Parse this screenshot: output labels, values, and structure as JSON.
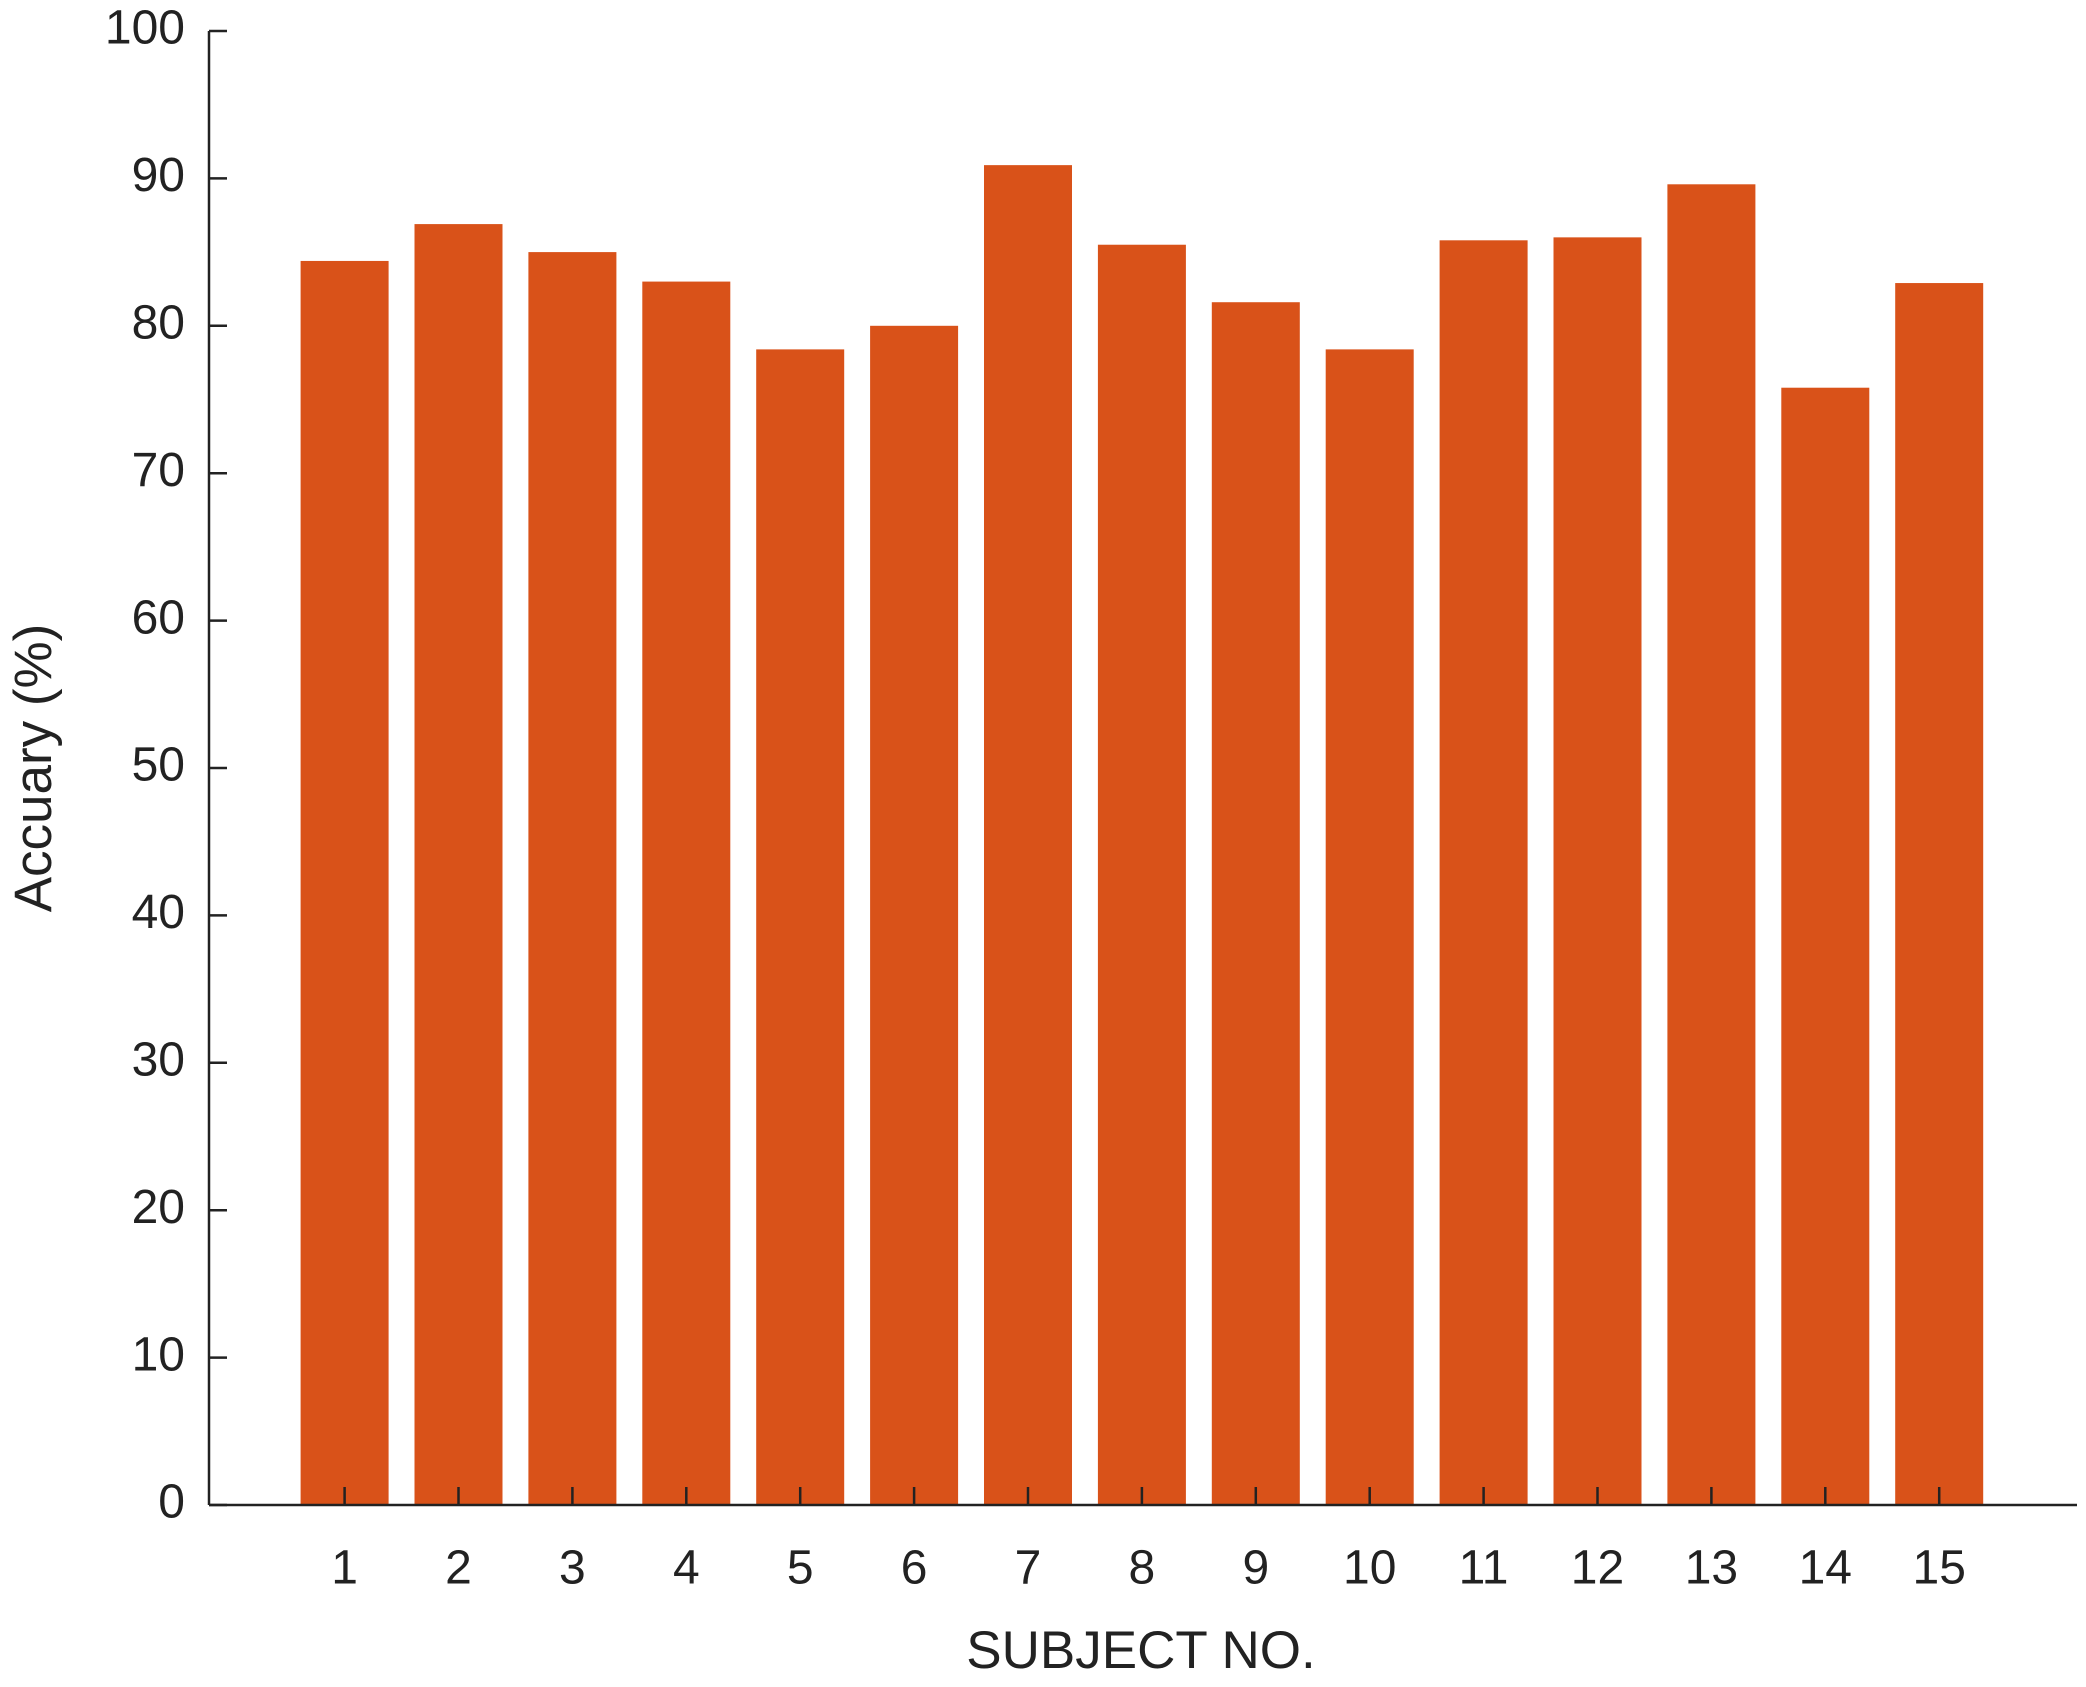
{
  "chart_data": {
    "type": "bar",
    "x_label": "SUBJECT NO.",
    "y_label": "Accuary (%)",
    "categories": [
      "1",
      "2",
      "3",
      "4",
      "5",
      "6",
      "7",
      "8",
      "9",
      "10",
      "11",
      "12",
      "13",
      "14",
      "15"
    ],
    "values": [
      84.4,
      86.9,
      85.0,
      83.0,
      78.4,
      80.0,
      90.9,
      85.5,
      81.6,
      78.4,
      85.8,
      86.0,
      89.6,
      75.8,
      82.9
    ],
    "color": "#d95219",
    "ylim": [
      0,
      100
    ],
    "yticks": [
      0,
      10,
      20,
      30,
      40,
      50,
      60,
      70,
      80,
      90,
      100
    ],
    "grid": false
  }
}
